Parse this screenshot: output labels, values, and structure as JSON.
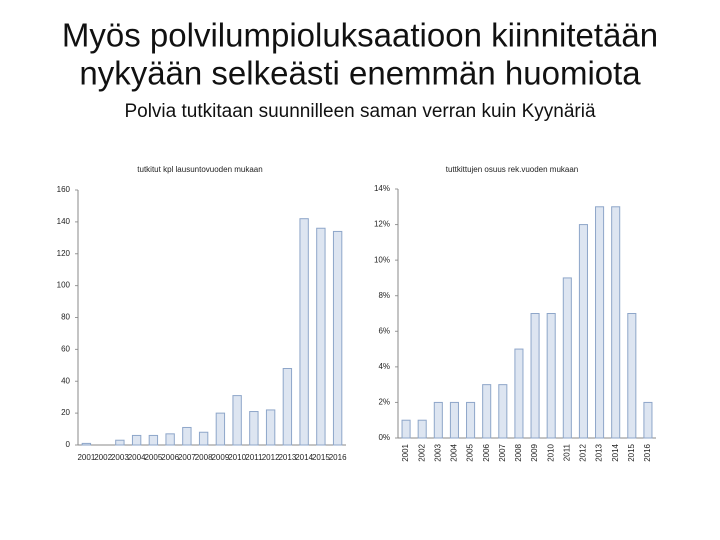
{
  "slide": {
    "title": [
      "Myös polvilumpioluksaatioon kiinnitetään",
      "nykyään selkeästi enemmän huomiota"
    ],
    "subtitle": "Polvia tutkitaan suunnilleen saman verran kuin Kyynäriä"
  },
  "chart_data": [
    {
      "type": "bar",
      "title": "tutkitut kpl lausuntovuoden mukaan",
      "categories": [
        "2001",
        "2002",
        "2003",
        "2004",
        "2005",
        "2006",
        "2007",
        "2008",
        "2009",
        "2010",
        "2011",
        "2012",
        "2013",
        "2014",
        "2015",
        "2016"
      ],
      "values": [
        1,
        0,
        3,
        6,
        6,
        7,
        11,
        8,
        20,
        31,
        21,
        22,
        48,
        142,
        136,
        134
      ],
      "ylim": [
        0,
        160
      ],
      "yticks": [
        0,
        20,
        40,
        60,
        80,
        100,
        120,
        140,
        160
      ],
      "color": "#dde5f1"
    },
    {
      "type": "bar",
      "title": "tuttkittujen osuus rek.vuoden mukaan",
      "categories": [
        "2001",
        "2002",
        "2003",
        "2004",
        "2005",
        "2006",
        "2007",
        "2008",
        "2009",
        "2010",
        "2011",
        "2012",
        "2013",
        "2014",
        "2015",
        "2016"
      ],
      "values": [
        1,
        1,
        2,
        2,
        2,
        3,
        3,
        5,
        7,
        7,
        9,
        12,
        13,
        13,
        7,
        2
      ],
      "ylim": [
        0,
        14
      ],
      "yticks": [
        {
          "value": 0,
          "label": "0%"
        },
        {
          "value": 2,
          "label": "2%"
        },
        {
          "value": 4,
          "label": "4%"
        },
        {
          "value": 6,
          "label": "6%"
        },
        {
          "value": 8,
          "label": "8%"
        },
        {
          "value": 10,
          "label": "10%"
        },
        {
          "value": 12,
          "label": "12%"
        },
        {
          "value": 14,
          "label": "14%"
        }
      ],
      "color": "#dde5f1"
    }
  ]
}
